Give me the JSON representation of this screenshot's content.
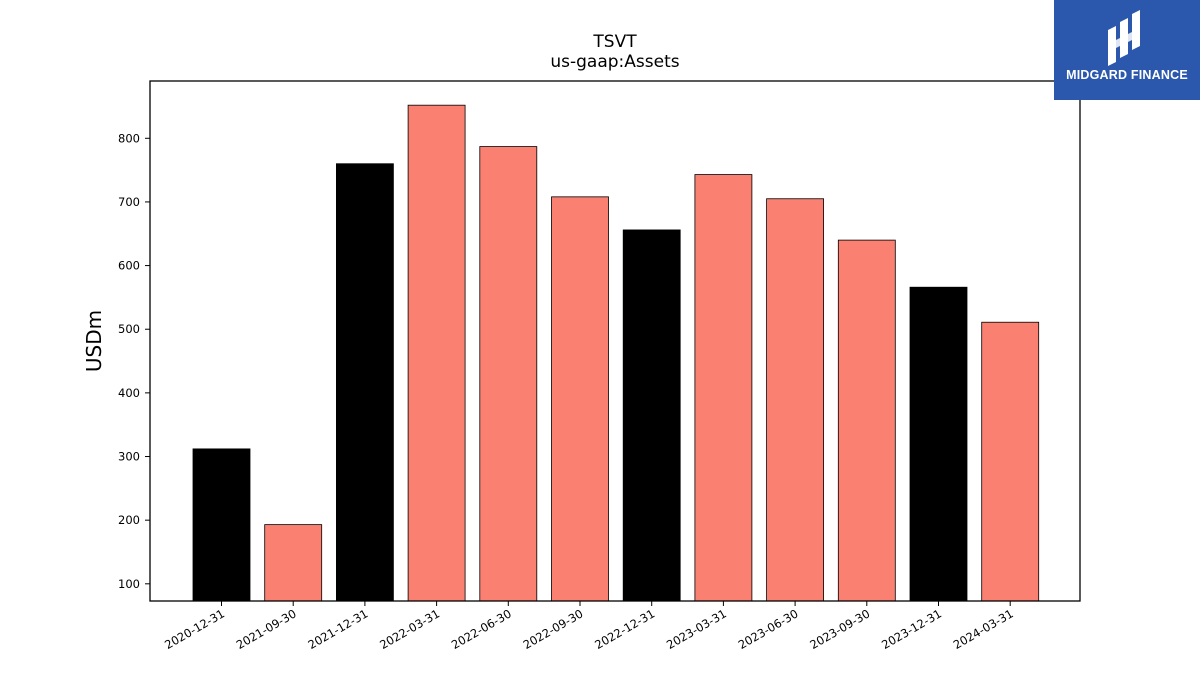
{
  "chart_data": {
    "type": "bar",
    "title": "TSVT",
    "subtitle": "us-gaap:Assets",
    "xlabel": "",
    "ylabel": "USDm",
    "categories": [
      "2020-12-31",
      "2021-09-30",
      "2021-12-31",
      "2022-03-31",
      "2022-06-30",
      "2022-09-30",
      "2022-12-31",
      "2023-03-31",
      "2023-06-30",
      "2023-09-30",
      "2023-12-31",
      "2024-03-31"
    ],
    "values": [
      312,
      193,
      760,
      852,
      787,
      708,
      656,
      743,
      705,
      640,
      566,
      511
    ],
    "bar_colors": [
      "#000000",
      "#fa8072",
      "#000000",
      "#fa8072",
      "#fa8072",
      "#fa8072",
      "#000000",
      "#fa8072",
      "#fa8072",
      "#fa8072",
      "#000000",
      "#fa8072"
    ],
    "yticks": [
      100,
      200,
      300,
      400,
      500,
      600,
      700,
      800
    ],
    "ylim": [
      73,
      890
    ],
    "grid": false,
    "legend": "none"
  },
  "logo": {
    "text": "MIDGARD FINANCE",
    "icon": "midgard-logo-icon",
    "background": "#2b58ac"
  }
}
